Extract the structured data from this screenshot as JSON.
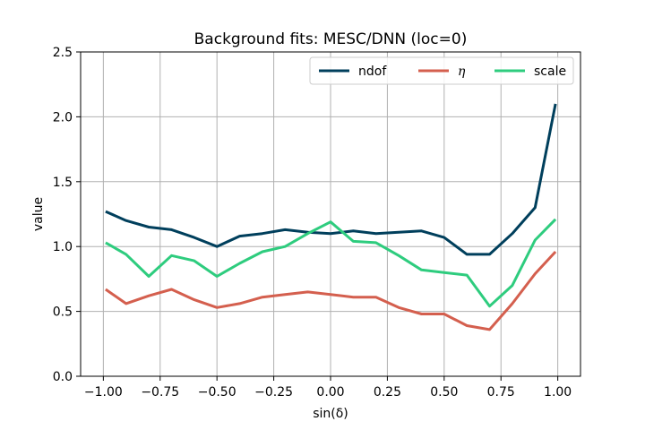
{
  "chart_data": {
    "type": "line",
    "title": "Background fits: MESC/DNN (loc=0)",
    "xlabel": "sin(δ)",
    "ylabel": "value",
    "xlim": [
      -1.1,
      1.1
    ],
    "ylim": [
      0.0,
      2.5
    ],
    "grid": true,
    "legend_position": "top-right",
    "x_ticks": [
      -1.0,
      -0.75,
      -0.5,
      -0.25,
      0.0,
      0.25,
      0.5,
      0.75,
      1.0
    ],
    "x_tick_labels": [
      "−1.00",
      "−0.75",
      "−0.50",
      "−0.25",
      "0.00",
      "0.25",
      "0.50",
      "0.75",
      "1.00"
    ],
    "y_ticks": [
      0.0,
      0.5,
      1.0,
      1.5,
      2.0,
      2.5
    ],
    "y_tick_labels": [
      "0.0",
      "0.5",
      "1.0",
      "1.5",
      "2.0",
      "2.5"
    ],
    "x": [
      -0.99,
      -0.9,
      -0.8,
      -0.7,
      -0.6,
      -0.5,
      -0.4,
      -0.3,
      -0.2,
      -0.1,
      0.0,
      0.1,
      0.2,
      0.3,
      0.4,
      0.5,
      0.6,
      0.7,
      0.8,
      0.9,
      0.99
    ],
    "series": [
      {
        "name": "ndof",
        "color": "#003f5c",
        "values": [
          1.27,
          1.2,
          1.15,
          1.13,
          1.07,
          1.0,
          1.08,
          1.1,
          1.13,
          1.11,
          1.1,
          1.12,
          1.1,
          1.11,
          1.12,
          1.07,
          0.94,
          0.94,
          1.1,
          1.3,
          2.1
        ]
      },
      {
        "name": "η",
        "color": "#d45f4e",
        "values": [
          0.67,
          0.56,
          0.62,
          0.67,
          0.59,
          0.53,
          0.56,
          0.61,
          0.63,
          0.65,
          0.63,
          0.61,
          0.61,
          0.53,
          0.48,
          0.48,
          0.39,
          0.36,
          0.56,
          0.79,
          0.96
        ]
      },
      {
        "name": "scale",
        "color": "#2ecc7e",
        "values": [
          1.03,
          0.94,
          0.77,
          0.93,
          0.89,
          0.77,
          0.87,
          0.96,
          1.0,
          1.1,
          1.19,
          1.04,
          1.03,
          0.93,
          0.82,
          0.8,
          0.78,
          0.54,
          0.7,
          1.05,
          1.21
        ]
      }
    ]
  }
}
